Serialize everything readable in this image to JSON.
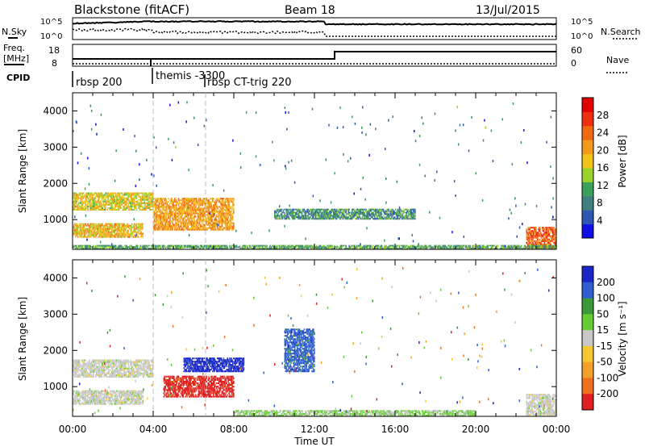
{
  "header": {
    "station": "Blackstone (fitACF)",
    "beam": "Beam 18",
    "date": "13/Jul/2015"
  },
  "meta_panel": {
    "left_top_label": "N.Sky",
    "left_mid_label_1": "Freq.",
    "left_mid_label_2": "[MHz]",
    "left_bottom_label": "CPID",
    "right_top_label": "N.Search",
    "right_mid_label": "Nave",
    "top_ticks_left": [
      "10^5",
      "10^0"
    ],
    "top_ticks_right": [
      "10^5",
      "10^0"
    ],
    "mid_ticks_left": [
      "18",
      "8"
    ],
    "mid_ticks_right": [
      "60",
      "0"
    ]
  },
  "cpid_segments": [
    {
      "label": "rbsp 200",
      "start_h": 0
    },
    {
      "label": "themis -3300",
      "start_h": 4
    },
    {
      "label": "rbsp CT-trig 220",
      "start_h": 6.6
    }
  ],
  "time_axis": {
    "label": "Time UT",
    "ticks": [
      "00:00",
      "04:00",
      "08:00",
      "12:00",
      "16:00",
      "20:00",
      "00:00"
    ]
  },
  "power_panel": {
    "ylabel": "Slant Range [km]",
    "yticks": [
      "1000",
      "2000",
      "3000",
      "4000"
    ],
    "cbar_label": "Power [dB]",
    "cbar_ticks": [
      "4",
      "8",
      "12",
      "16",
      "20",
      "24",
      "28"
    ],
    "cbar_colors": [
      "#1010e6",
      "#2f55b5",
      "#3f7f7f",
      "#3aa05a",
      "#9bd22a",
      "#f2c21a",
      "#f39a1a",
      "#f06a10",
      "#ee3010",
      "#e00000"
    ]
  },
  "velocity_panel": {
    "ylabel": "Slant Range [km]",
    "yticks": [
      "1000",
      "2000",
      "3000",
      "4000"
    ],
    "cbar_label": "Velocity [m s⁻¹]",
    "cbar_ticks": [
      "200",
      "100",
      "50",
      "15",
      "-15",
      "-50",
      "-100",
      "-200"
    ],
    "cbar_colors": [
      "#1a26c9",
      "#2f5fcf",
      "#3a9a3a",
      "#66cc33",
      "#c8c8c8",
      "#f5c830",
      "#f3a02a",
      "#f07020",
      "#e02020"
    ]
  },
  "chart_data": [
    {
      "type": "heatmap",
      "title": "Blackstone (fitACF)",
      "xlabel": "Time UT",
      "ylabel": "Slant Range [km]",
      "xlim": [
        0,
        24
      ],
      "ylim": [
        180,
        4500
      ],
      "colorbar": "Power [dB]",
      "colorbar_range": [
        0,
        30
      ],
      "echo_regions": [
        {
          "t0": 0.0,
          "t1": 4.0,
          "r0": 1250,
          "r1": 1750,
          "power": 16
        },
        {
          "t0": 0.0,
          "t1": 3.5,
          "r0": 500,
          "r1": 900,
          "power": 18
        },
        {
          "t0": 4.0,
          "t1": 8.0,
          "r0": 700,
          "r1": 1600,
          "power": 20
        },
        {
          "t0": 10.0,
          "t1": 17.0,
          "r0": 1000,
          "r1": 1300,
          "power": 8
        },
        {
          "t0": 22.5,
          "t1": 24.0,
          "r0": 200,
          "r1": 800,
          "power": 24
        },
        {
          "t0": 0.0,
          "t1": 24.0,
          "r0": 180,
          "r1": 300,
          "power": 10
        }
      ]
    },
    {
      "type": "heatmap",
      "title": "Beam 18",
      "xlabel": "Time UT",
      "ylabel": "Slant Range [km]",
      "xlim": [
        0,
        24
      ],
      "ylim": [
        180,
        4500
      ],
      "colorbar": "Velocity [m s⁻¹]",
      "colorbar_range": [
        -200,
        200
      ],
      "echo_regions": [
        {
          "t0": 0.0,
          "t1": 4.0,
          "r0": 1250,
          "r1": 1750,
          "velocity": 0
        },
        {
          "t0": 0.0,
          "t1": 3.5,
          "r0": 500,
          "r1": 900,
          "velocity": 0
        },
        {
          "t0": 4.5,
          "t1": 8.0,
          "r0": 700,
          "r1": 1300,
          "velocity": -200
        },
        {
          "t0": 5.5,
          "t1": 8.5,
          "r0": 1400,
          "r1": 1800,
          "velocity": 200
        },
        {
          "t0": 10.5,
          "t1": 12.0,
          "r0": 1400,
          "r1": 2600,
          "velocity": 150
        },
        {
          "t0": 22.5,
          "t1": 24.0,
          "r0": 200,
          "r1": 800,
          "velocity": 0
        },
        {
          "t0": 8.0,
          "t1": 20.0,
          "r0": 180,
          "r1": 350,
          "velocity": 30
        }
      ]
    }
  ]
}
